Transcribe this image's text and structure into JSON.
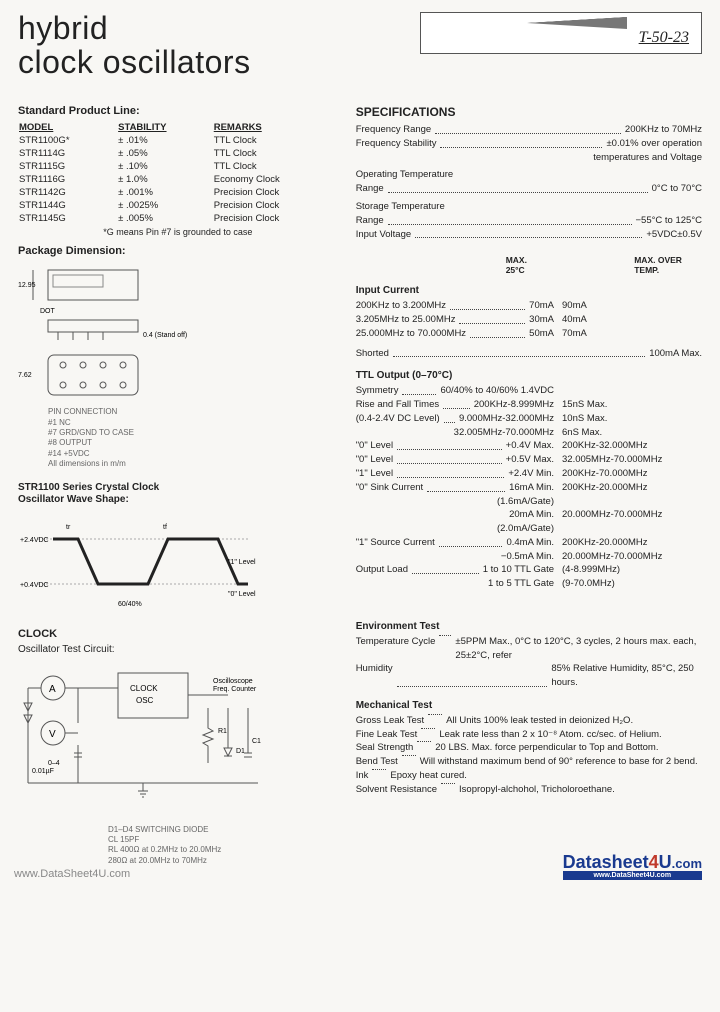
{
  "title_line1": "hybrid",
  "title_line2": "clock oscillators",
  "box_label": "T-50-23",
  "product_line": {
    "heading": "Standard Product Line:",
    "cols": [
      "MODEL",
      "STABILITY",
      "REMARKS"
    ],
    "rows": [
      [
        "STR1100G*",
        "±  .01%",
        "TTL Clock"
      ],
      [
        "STR1114G",
        "±  .05%",
        "TTL Clock"
      ],
      [
        "STR1115G",
        "±  .10%",
        "TTL Clock"
      ],
      [
        "STR1116G",
        "± 1.0%",
        "Economy Clock"
      ],
      [
        "STR1142G",
        "±  .001%",
        "Precision Clock"
      ],
      [
        "STR1144G",
        "±  .0025%",
        "Precision Clock"
      ],
      [
        "STR1145G",
        "±  .005%",
        "Precision Clock"
      ]
    ],
    "note": "*G means Pin #7 is grounded to case"
  },
  "pkg_heading": "Package Dimension:",
  "pins": {
    "title": "PIN CONNECTION",
    "p1": "#1  NC",
    "p7": "#7  GRD/GND TO CASE",
    "p8": "#8  OUTPUT",
    "p14": "#14  +5VDC",
    "note": "All dimensions in m/m"
  },
  "wave_title1": "STR1100 Series Crystal Clock",
  "wave_title2": "Oscillator Wave Shape:",
  "clock_heading": "CLOCK",
  "circuit_heading": "Oscillator Test Circuit:",
  "circuit_notes": {
    "d": "D1–D4  SWITCHING DIODE",
    "cl": "CL         15PF",
    "rl": "RL          400Ω at 0.2MHz to 20.0MHz",
    "rl2": "              280Ω at 20.0MHz to 70MHz"
  },
  "specs": {
    "heading": "SPECIFICATIONS",
    "rows": [
      {
        "l": "Frequency Range",
        "v": "200KHz to 70MHz"
      },
      {
        "l": "Frequency Stability",
        "v": "±0.01% over operation"
      },
      {
        "l": "",
        "v": "temperatures and Voltage"
      },
      {
        "l": "Operating Temperature",
        "v": ""
      },
      {
        "l": "Range",
        "v": "0°C to 70°C"
      },
      {
        "l": "Storage Temperature",
        "v": ""
      },
      {
        "l": "Range",
        "v": "−55°C to 125°C"
      },
      {
        "l": "Input Voltage",
        "v": "+5VDC±0.5V"
      }
    ]
  },
  "input_current": {
    "heading": "Input Current",
    "head1": "MAX. 25°C",
    "head2": "MAX. OVER TEMP.",
    "rows": [
      {
        "l": "200KHz to 3.200MHz",
        "v": "70mA",
        "v2": "90mA"
      },
      {
        "l": "3.205MHz to 25.00MHz",
        "v": "30mA",
        "v2": "40mA"
      },
      {
        "l": "25.000MHz to 70.000MHz",
        "v": "50mA",
        "v2": "70mA"
      }
    ],
    "shorted": {
      "l": "Shorted",
      "v": "100mA Max."
    }
  },
  "ttl": {
    "heading": "TTL Output (0–70°C)",
    "rows": [
      {
        "l": "Symmetry",
        "v": "60/40% to 40/60% 1.4VDC",
        "v2": ""
      },
      {
        "l": "Rise and Fall Times",
        "v": "200KHz-8.999MHz",
        "v2": "15nS Max."
      },
      {
        "l": "(0.4-2.4V DC Level)",
        "v": "9.000MHz-32.000MHz",
        "v2": "10nS Max."
      },
      {
        "l": "",
        "v": "32.005MHz-70.000MHz",
        "v2": "6nS Max."
      },
      {
        "l": "\"0\" Level",
        "v": "+0.4V Max.",
        "v2": "200KHz-32.000MHz"
      },
      {
        "l": "\"0\" Level",
        "v": "+0.5V Max.",
        "v2": "32.005MHz-70.000MHz"
      },
      {
        "l": "\"1\" Level",
        "v": "+2.4V Min.",
        "v2": "200KHz-70.000MHz"
      },
      {
        "l": "\"0\" Sink Current",
        "v": "16mA Min.",
        "v2": "200KHz-20.000MHz"
      },
      {
        "l": "",
        "v": "(1.6mA/Gate)",
        "v2": ""
      },
      {
        "l": "",
        "v": "20mA Min.",
        "v2": "20.000MHz-70.000MHz"
      },
      {
        "l": "",
        "v": "(2.0mA/Gate)",
        "v2": ""
      },
      {
        "l": "\"1\" Source Current",
        "v": "0.4mA Min.",
        "v2": "200KHz-20.000MHz"
      },
      {
        "l": "",
        "v": "−0.5mA Min.",
        "v2": "20.000MHz-70.000MHz"
      },
      {
        "l": "Output Load",
        "v": "1 to 10 TTL Gate",
        "v2": "(4-8.999MHz)"
      },
      {
        "l": "",
        "v": "1 to 5 TTL Gate",
        "v2": "(9-70.0MHz)"
      }
    ]
  },
  "env": {
    "heading": "Environment Test",
    "rows": [
      {
        "l": "Temperature Cycle",
        "v": "±5PPM Max., 0°C to 120°C, 3 cycles, 2 hours max. each, 25±2°C, refer"
      },
      {
        "l": "Humidity",
        "v": "85% Relative Humidity, 85°C, 250 hours."
      }
    ]
  },
  "mech": {
    "heading": "Mechanical Test",
    "rows": [
      {
        "l": "Gross Leak Test",
        "v": "All Units 100% leak tested in deionized H₂O."
      },
      {
        "l": "Fine Leak Test",
        "v": "Leak rate less than 2 x 10⁻⁸ Atom. cc/sec. of Helium."
      },
      {
        "l": "Seal Strength",
        "v": "20 LBS. Max. force perpendicular to Top and Bottom."
      },
      {
        "l": "Bend Test",
        "v": "Will withstand maximum bend of 90° reference to base for 2 bend."
      },
      {
        "l": "Ink",
        "v": "Epoxy heat cured."
      },
      {
        "l": "Solvent Resistance",
        "v": "Isopropyl-alchohol, Tricholoroethane."
      }
    ]
  },
  "watermark": "www.DataSheet4U.com",
  "logo": {
    "t1": "Datasheet",
    "t2": "4",
    "t3": "U",
    "t4": ".com",
    "tag": "www.DataSheet4U.com"
  }
}
